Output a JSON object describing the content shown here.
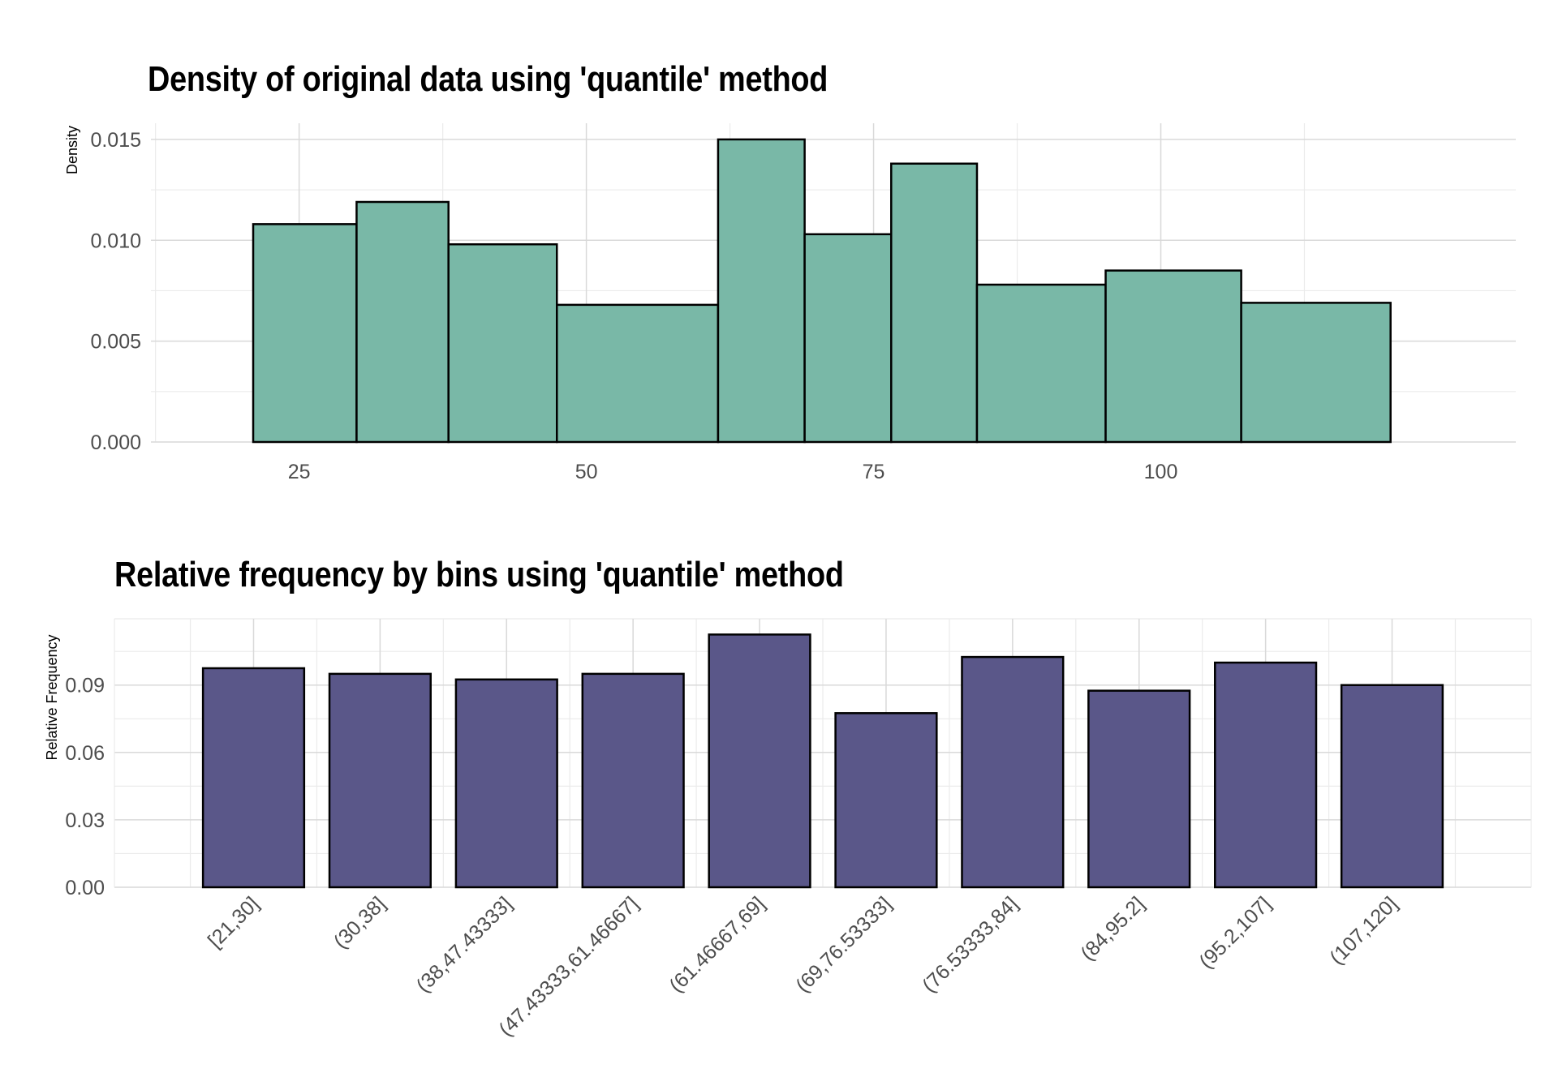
{
  "chart_data": [
    {
      "type": "bar",
      "title": "Density of original data using 'quantile' method",
      "xlabel": "",
      "ylabel": "Density",
      "xlim": [
        12.1,
        130.9
      ],
      "ylim": [
        0,
        0.0158
      ],
      "x_ticks": [
        25,
        50,
        75,
        100
      ],
      "y_ticks": [
        0.0,
        0.005,
        0.01,
        0.015
      ],
      "y_tick_labels": [
        "0.000",
        "0.005",
        "0.010",
        "0.015"
      ],
      "grid": true,
      "fill_color": "#79b8a7",
      "edge_color": "#000000",
      "bins": [
        {
          "x0": 21,
          "x1": 30,
          "value": 0.0108
        },
        {
          "x0": 30,
          "x1": 38,
          "value": 0.0119
        },
        {
          "x0": 38,
          "x1": 47.43333,
          "value": 0.0098
        },
        {
          "x0": 47.43333,
          "x1": 61.46667,
          "value": 0.0068
        },
        {
          "x0": 61.46667,
          "x1": 69,
          "value": 0.015
        },
        {
          "x0": 69,
          "x1": 76.53333,
          "value": 0.0103
        },
        {
          "x0": 76.53333,
          "x1": 84,
          "value": 0.0138
        },
        {
          "x0": 84,
          "x1": 95.2,
          "value": 0.0078
        },
        {
          "x0": 95.2,
          "x1": 107,
          "value": 0.0085
        },
        {
          "x0": 107,
          "x1": 120,
          "value": 0.0069
        }
      ]
    },
    {
      "type": "bar",
      "title": "Relative frequency by bins using 'quantile' method",
      "xlabel": "",
      "ylabel": "Relative Frequency",
      "ylim": [
        0,
        0.1195
      ],
      "y_ticks": [
        0.0,
        0.03,
        0.06,
        0.09
      ],
      "y_tick_labels": [
        "0.00",
        "0.03",
        "0.06",
        "0.09"
      ],
      "grid": true,
      "fill_color": "#5a5789",
      "edge_color": "#000000",
      "categories": [
        "[21,30]",
        "(30,38]",
        "(38,47.43333]",
        "(47.43333,61.46667]",
        "(61.46667,69]",
        "(69,76.53333]",
        "(76.53333,84]",
        "(84,95.2]",
        "(95.2,107]",
        "(107,120]"
      ],
      "values": [
        0.0975,
        0.095,
        0.0925,
        0.095,
        0.1125,
        0.0775,
        0.1025,
        0.0875,
        0.1,
        0.09
      ]
    }
  ]
}
